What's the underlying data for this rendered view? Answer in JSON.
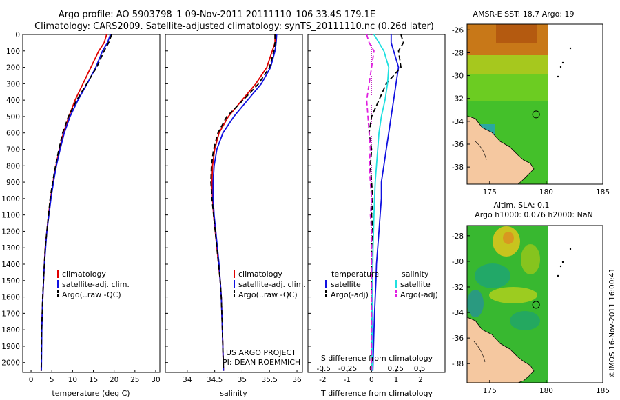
{
  "header": {
    "title_line1": "Argo profile: AO 5903798_1 09-Nov-2011 20111110_106 33.4S 179.1E",
    "title_line2": "Climatology: CARS2009. Satellite-adjusted climatology: synTS_20111110.nc (0.26d later)"
  },
  "watermark": "©IMOS 16-Nov-2011 16:00:41",
  "colors": {
    "climatology": "#e00000",
    "satellite": "#1010e0",
    "argo": "#000000",
    "satellite_salinity": "#20e0e0",
    "argo_salinity": "#e020e0"
  },
  "chart_data": [
    {
      "id": "temperature",
      "type": "line",
      "xlabel": "temperature (deg C)",
      "ylabel": "",
      "xlim": [
        -2,
        31
      ],
      "ylim": [
        2060,
        0
      ],
      "xticks": [
        0,
        5,
        10,
        15,
        20,
        25,
        30
      ],
      "yticks": [
        0,
        100,
        200,
        300,
        400,
        500,
        600,
        700,
        800,
        900,
        1000,
        1100,
        1200,
        1300,
        1400,
        1500,
        1600,
        1700,
        1800,
        1900,
        2000
      ],
      "legend": [
        "climatology",
        "satellite-adj. clim.",
        "Argo(..raw -QC)"
      ],
      "series": [
        {
          "name": "climatology",
          "color": "#e00000",
          "style": "solid",
          "x": [
            18.2,
            17.6,
            16.3,
            14.4,
            12.5,
            10.6,
            9.1,
            7.8,
            6.8,
            6.0,
            5.3,
            4.7,
            4.2,
            3.8,
            3.4,
            3.2,
            3.0,
            2.85,
            2.7,
            2.55,
            2.45
          ],
          "y": [
            0,
            50,
            100,
            200,
            300,
            400,
            500,
            600,
            700,
            800,
            900,
            1000,
            1100,
            1200,
            1300,
            1400,
            1500,
            1600,
            1700,
            1800,
            2050
          ]
        },
        {
          "name": "satellite-adj. clim.",
          "color": "#1010e0",
          "style": "solid",
          "x": [
            19.1,
            18.4,
            17.2,
            15.6,
            13.5,
            11.3,
            9.4,
            8.0,
            7.0,
            6.1,
            5.4,
            4.8,
            4.3,
            3.8,
            3.5,
            3.2,
            3.0,
            2.85,
            2.7,
            2.6,
            2.5
          ],
          "y": [
            0,
            50,
            100,
            200,
            300,
            400,
            500,
            600,
            700,
            800,
            900,
            1000,
            1100,
            1200,
            1300,
            1400,
            1500,
            1600,
            1700,
            1800,
            2050
          ]
        },
        {
          "name": "Argo(..raw -QC)",
          "color": "#000000",
          "style": "dashed",
          "x": [
            19.4,
            18.7,
            17.6,
            15.8,
            13.4,
            11.0,
            9.0,
            7.6,
            6.7,
            5.9,
            5.2,
            4.6,
            4.2,
            3.8,
            3.4,
            3.2,
            3.0,
            2.8,
            2.7,
            2.55,
            2.45
          ],
          "y": [
            0,
            50,
            100,
            200,
            300,
            400,
            500,
            600,
            700,
            800,
            900,
            1000,
            1100,
            1200,
            1300,
            1400,
            1500,
            1600,
            1700,
            1800,
            2050
          ]
        }
      ]
    },
    {
      "id": "salinity",
      "type": "line",
      "xlabel": "salinity",
      "ylabel": "",
      "xlim": [
        33.6,
        36.1
      ],
      "ylim": [
        2060,
        0
      ],
      "xticks": [
        34,
        34.5,
        35,
        35.5,
        36
      ],
      "legend": [
        "climatology",
        "satellite-adj. clim.",
        "Argo(..raw -QC)"
      ],
      "annotation_line1": "US ARGO PROJECT",
      "annotation_line2": "PI: DEAN ROEMMICH",
      "series": [
        {
          "name": "climatology",
          "color": "#e00000",
          "style": "solid",
          "x": [
            35.6,
            35.6,
            35.55,
            35.45,
            35.25,
            35.0,
            34.75,
            34.58,
            34.5,
            34.46,
            34.45,
            34.46,
            34.48,
            34.51,
            34.54,
            34.57,
            34.6,
            34.62,
            34.63,
            34.64,
            34.66
          ],
          "y": [
            0,
            50,
            100,
            200,
            300,
            400,
            500,
            600,
            700,
            800,
            900,
            1000,
            1100,
            1200,
            1300,
            1400,
            1500,
            1600,
            1700,
            1800,
            2050
          ]
        },
        {
          "name": "satellite-adj. clim.",
          "color": "#1010e0",
          "style": "solid",
          "x": [
            35.63,
            35.62,
            35.6,
            35.52,
            35.35,
            35.1,
            34.85,
            34.65,
            34.54,
            34.49,
            34.47,
            34.47,
            34.49,
            34.52,
            34.55,
            34.58,
            34.6,
            34.62,
            34.63,
            34.64,
            34.66
          ],
          "y": [
            0,
            50,
            100,
            200,
            300,
            400,
            500,
            600,
            700,
            800,
            900,
            1000,
            1100,
            1200,
            1300,
            1400,
            1500,
            1600,
            1700,
            1800,
            2050
          ]
        },
        {
          "name": "Argo(..raw -QC)",
          "color": "#000000",
          "style": "dashed",
          "x": [
            35.6,
            35.6,
            35.58,
            35.5,
            35.3,
            35.02,
            34.72,
            34.56,
            34.48,
            34.44,
            34.43,
            34.45,
            34.48,
            34.51,
            34.54,
            34.57,
            34.6,
            34.62,
            34.63,
            34.64,
            34.66
          ],
          "y": [
            0,
            50,
            100,
            200,
            300,
            400,
            500,
            600,
            700,
            800,
            900,
            1000,
            1100,
            1200,
            1300,
            1400,
            1500,
            1600,
            1700,
            1800,
            2050
          ]
        }
      ]
    },
    {
      "id": "difference",
      "type": "line",
      "xlabel": "T difference from climatology",
      "top_axis_label": "S difference from climatology",
      "xlim": [
        -2.6,
        3.0
      ],
      "ylim": [
        2060,
        0
      ],
      "xticks": [
        -2,
        -1,
        0,
        1,
        2
      ],
      "s_ticks": [
        {
          "label": "-0.5",
          "at_t": -1.96
        },
        {
          "label": "-0.25",
          "at_t": -0.98
        },
        {
          "label": "0",
          "at_t": 0.0
        },
        {
          "label": "0.25",
          "at_t": 0.98
        },
        {
          "label": "0.5",
          "at_t": 1.96
        }
      ],
      "legend_temperature_title": "temperature",
      "legend_salinity_title": "salinity",
      "legend": [
        "satellite",
        "Argo(-adj)",
        "satellite",
        "Argo(-adj)"
      ],
      "series": [
        {
          "name": "T satellite",
          "color": "#1010e0",
          "style": "solid",
          "x": [
            0.8,
            0.8,
            0.9,
            1.1,
            1.0,
            0.9,
            0.8,
            0.7,
            0.6,
            0.5,
            0.4,
            0.4,
            0.35,
            0.3,
            0.25,
            0.2,
            0.18,
            0.15,
            0.12,
            0.1,
            0.05
          ],
          "y": [
            0,
            50,
            100,
            200,
            300,
            400,
            500,
            600,
            700,
            800,
            900,
            1000,
            1100,
            1200,
            1300,
            1400,
            1500,
            1600,
            1700,
            1800,
            2050
          ]
        },
        {
          "name": "T Argo(-adj)",
          "color": "#000000",
          "style": "dashed",
          "x": [
            1.2,
            1.3,
            1.1,
            1.2,
            0.6,
            0.3,
            0.0,
            -0.1,
            0.0,
            -0.05,
            0.0,
            0.05,
            0.0,
            0.05,
            0.0,
            0.0,
            0.0,
            0.0,
            0.0,
            0.0,
            0.0
          ],
          "y": [
            0,
            50,
            100,
            200,
            300,
            400,
            500,
            600,
            700,
            800,
            900,
            1000,
            1100,
            1200,
            1300,
            1400,
            1500,
            1600,
            1700,
            1800,
            2050
          ]
        },
        {
          "name": "S satellite",
          "color": "#20e0e0",
          "style": "solid",
          "x": [
            0.1,
            0.3,
            0.5,
            0.7,
            0.65,
            0.55,
            0.4,
            0.3,
            0.25,
            0.2,
            0.15,
            0.12,
            0.1,
            0.08,
            0.06,
            0.05,
            0.04,
            0.03,
            0.02,
            0.02,
            0.02
          ],
          "y": [
            0,
            50,
            100,
            200,
            300,
            400,
            500,
            600,
            700,
            800,
            900,
            1000,
            1100,
            1200,
            1300,
            1400,
            1500,
            1600,
            1700,
            1800,
            2050
          ]
        },
        {
          "name": "S Argo(-adj)",
          "color": "#e020e0",
          "style": "dashed",
          "x": [
            -0.2,
            -0.1,
            0.1,
            0.0,
            -0.1,
            -0.2,
            -0.15,
            -0.1,
            -0.05,
            -0.1,
            -0.05,
            0.0,
            -0.05,
            0.0,
            0.0,
            0.0,
            0.0,
            0.0,
            0.0,
            0.0,
            0.0
          ],
          "y": [
            0,
            50,
            100,
            200,
            300,
            400,
            500,
            600,
            700,
            800,
            900,
            1000,
            1100,
            1200,
            1300,
            1400,
            1500,
            1600,
            1700,
            1800,
            2050
          ]
        }
      ]
    },
    {
      "id": "sst_map",
      "type": "heatmap",
      "title": "AMSR-E SST: 18.7  Argo: 19",
      "xlim": [
        173,
        185
      ],
      "ylim": [
        -39.5,
        -25.5
      ],
      "xticks": [
        175,
        180,
        185
      ],
      "yticks": [
        -26,
        -28,
        -30,
        -32,
        -34,
        -36,
        -38
      ],
      "float_position": [
        179.1,
        -33.4
      ]
    },
    {
      "id": "sla_map",
      "type": "heatmap",
      "title_line1": "Altim. SLA: 0.1",
      "title_line2": "Argo h1000: 0.076  h2000: NaN",
      "xlim": [
        173,
        185
      ],
      "ylim": [
        -39.5,
        -27.2
      ],
      "xticks": [
        175,
        180,
        185
      ],
      "yticks": [
        -28,
        -30,
        -32,
        -34,
        -36,
        -38
      ],
      "float_position": [
        179.1,
        -33.4
      ]
    }
  ]
}
